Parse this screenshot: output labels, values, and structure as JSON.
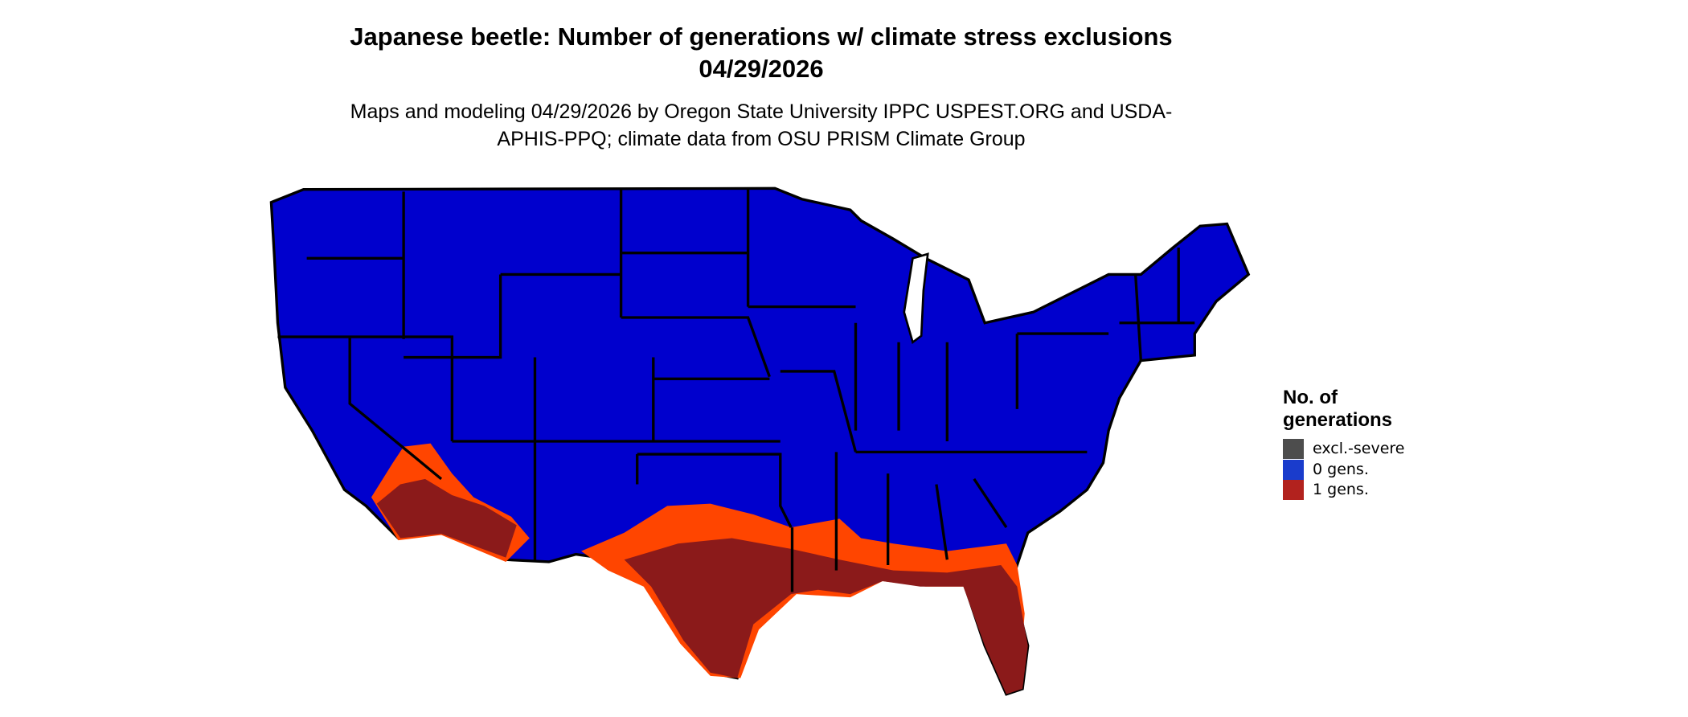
{
  "title": "Japanese beetle: Number of generations w/ climate stress exclusions 04/29/2026",
  "subtitle": "Maps and modeling 04/29/2026 by Oregon State University IPPC USPEST.ORG and USDA-APHIS-PPQ; climate data from OSU PRISM Climate Group",
  "legend": {
    "title": "No. of generations",
    "items": [
      {
        "label": "excl.-severe",
        "color": "#4d4d4d"
      },
      {
        "label": "0 gens.",
        "color": "#1a3ccc"
      },
      {
        "label": "1 gens.",
        "color": "#b2221e"
      }
    ]
  }
}
